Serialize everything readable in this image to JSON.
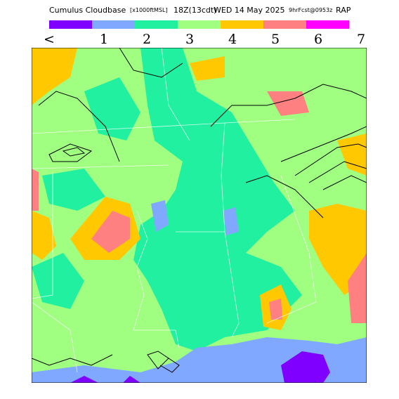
{
  "title": {
    "product": "Cumulus Cloudbase",
    "units": "[x1000ftMSL]",
    "time": "18Z(13cdt)",
    "date": "WED 14 May 2025",
    "forecast": "9hrFcst@0953z",
    "model": "RAP"
  },
  "legend": {
    "colors": [
      "#8000ff",
      "#80a8ff",
      "#20f0a0",
      "#a0ff80",
      "#ffc800",
      "#ff8080",
      "#ff00ff"
    ],
    "labels": [
      "<",
      "1",
      "2",
      "3",
      "4",
      "5",
      "6",
      "7"
    ]
  }
}
